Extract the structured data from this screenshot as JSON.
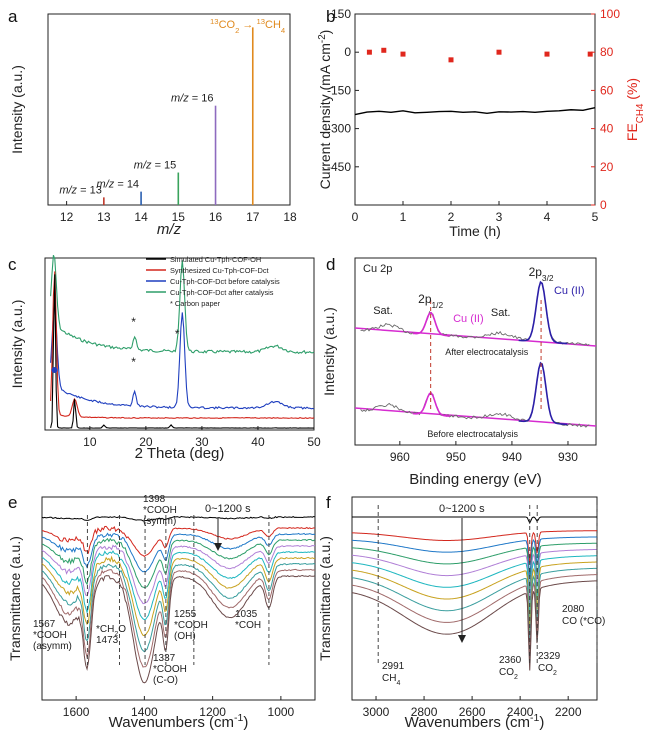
{
  "chart_data": [
    {
      "panel": "a",
      "type": "bar",
      "xlabel_prefix": "m/z",
      "ylabel": "Intensity (a.u.)",
      "xlim": [
        11.5,
        18
      ],
      "x_ticks": [
        12,
        13,
        14,
        15,
        16,
        17,
        18
      ],
      "colors": [
        "#c0392b",
        "#2a5fb0",
        "#3aa35c",
        "#8e6bbf",
        "#e08a1e"
      ],
      "series": [
        {
          "mz": 13,
          "value": 0.04,
          "label": "m/z = 13"
        },
        {
          "mz": 14,
          "value": 0.07,
          "label": "m/z = 14"
        },
        {
          "mz": 15,
          "value": 0.17,
          "label": "m/z = 15"
        },
        {
          "mz": 16,
          "value": 0.52,
          "label": "m/z = 16"
        },
        {
          "mz": 17,
          "value": 0.93,
          "label": ""
        }
      ],
      "annotation": "13CO2 → 13CH4"
    },
    {
      "panel": "b",
      "type": "line",
      "xlabel": "Time (h)",
      "ylabel": "Current density (mA cm-2)",
      "ylabel_right": "FE CH4 (%)",
      "xlim": [
        0,
        5
      ],
      "ylim": [
        -600,
        150
      ],
      "ylim_right": [
        0,
        100
      ],
      "x_ticks": [
        0,
        1,
        2,
        3,
        4,
        5
      ],
      "y_ticks": [
        150,
        0,
        -150,
        -300,
        -450
      ],
      "y_ticks_right": [
        100,
        80,
        60,
        40,
        20,
        0
      ],
      "current": {
        "x": [
          0,
          0.25,
          0.5,
          0.75,
          1.0,
          1.25,
          1.5,
          1.75,
          2.0,
          2.25,
          2.5,
          2.75,
          3.0,
          3.25,
          3.5,
          3.75,
          4.0,
          4.25,
          4.5,
          4.75,
          5.0
        ],
        "y": [
          -245,
          -235,
          -232,
          -236,
          -230,
          -238,
          -236,
          -233,
          -232,
          -236,
          -234,
          -240,
          -234,
          -235,
          -233,
          -236,
          -232,
          -230,
          -226,
          -228,
          -218
        ]
      },
      "fe": {
        "x": [
          0.3,
          0.6,
          1.0,
          2.0,
          3.0,
          4.0,
          4.9
        ],
        "y": [
          80,
          81,
          79,
          76,
          80,
          79,
          79
        ]
      },
      "colors": {
        "current": "#000000",
        "fe": "#e0271d"
      }
    },
    {
      "panel": "c",
      "type": "line",
      "xlabel": "2 Theta (deg)",
      "ylabel": "Intensity (a.u.)",
      "xlim": [
        2,
        50
      ],
      "x_ticks": [
        10,
        20,
        30,
        40,
        50
      ],
      "legend": [
        {
          "name": "Simulated Cu-Tph-COF-OH",
          "color": "#000000"
        },
        {
          "name": "Synthesized Cu-Tph-COF-Dct",
          "color": "#d3271d"
        },
        {
          "name": "Cu-Tph-COF-Dct before catalysis",
          "color": "#1f3fbf"
        },
        {
          "name": "Cu-Tph-COF-Dct after catalysis",
          "color": "#2e9e6a"
        }
      ],
      "legend_note": "* Carbon paper",
      "star_marks": [
        "*",
        "*",
        "*"
      ]
    },
    {
      "panel": "d",
      "type": "line",
      "title": "Cu 2p",
      "xlabel": "Binding energy (eV)",
      "ylabel": "Intensity (a.u.)",
      "xlim": [
        968,
        925
      ],
      "x_ticks": [
        960,
        950,
        940,
        930
      ],
      "peak_labels": {
        "p12": "2p1/2",
        "p32": "2p3/2",
        "cu_pink": "Cu (II)",
        "cu_blue": "Cu (II)",
        "sat1": "Sat.",
        "sat2": "Sat."
      },
      "curve_labels": {
        "after": "After electrocatalysis",
        "before": "Before electrocatalysis"
      },
      "colors": {
        "raw": "#6a6a6a",
        "fit_pink": "#d62bd0",
        "fit_blue": "#2b1fa8",
        "baseline": "#d62bd0",
        "dashed": "#c0392b"
      }
    },
    {
      "panel": "e",
      "type": "line",
      "xlabel": "Wavenumbers (cm-1)",
      "ylabel": "Transmittance (a.u.)",
      "xlim": [
        1700,
        900
      ],
      "x_ticks": [
        1600,
        1400,
        1200,
        1000
      ],
      "time_label": "0~1200 s",
      "annotations": [
        {
          "id": "1567",
          "lines": [
            "1567",
            "*COOH",
            "(asymm)"
          ]
        },
        {
          "id": "1473",
          "lines": [
            "*CH2O",
            "1473"
          ]
        },
        {
          "id": "1398",
          "lines": [
            "1398",
            "*COOH",
            "(symm)"
          ]
        },
        {
          "id": "1337",
          "lines": [
            "1337",
            "*COOH",
            "(C-O)"
          ]
        },
        {
          "id": "1255",
          "lines": [
            "1255",
            "*COOH",
            "(OH)"
          ]
        },
        {
          "id": "1035",
          "lines": [
            "1035",
            "*COH"
          ]
        }
      ],
      "dashed_at": [
        1567,
        1473,
        1398,
        1337,
        1255,
        1035
      ]
    },
    {
      "panel": "f",
      "type": "line",
      "xlabel": "Wavenumbers (cm-1)",
      "ylabel": "Transmittance (a.u.)",
      "xlim": [
        3100,
        2080
      ],
      "x_ticks": [
        3000,
        2800,
        2600,
        2400,
        2200
      ],
      "time_label": "0~1200 s",
      "annotations": [
        {
          "id": "2991",
          "lines": [
            "2991",
            "CH4"
          ]
        },
        {
          "id": "2360",
          "lines": [
            "2360",
            "CO2"
          ]
        },
        {
          "id": "2329",
          "lines": [
            "2329",
            "CO2"
          ]
        },
        {
          "id": "2080",
          "lines": [
            "2080",
            "CO (*CO)"
          ]
        }
      ],
      "dashed_at": [
        2991,
        2360,
        2329,
        2080
      ]
    }
  ],
  "panel_letters": [
    "a",
    "b",
    "c",
    "d",
    "e",
    "f"
  ],
  "series_colors": [
    "#000000",
    "#d3271d",
    "#1f78c8",
    "#2e9e6a",
    "#b07fd6",
    "#1fb7c0",
    "#c8a21f",
    "#3a9e9e",
    "#a06a6a",
    "#6b4a4a"
  ]
}
